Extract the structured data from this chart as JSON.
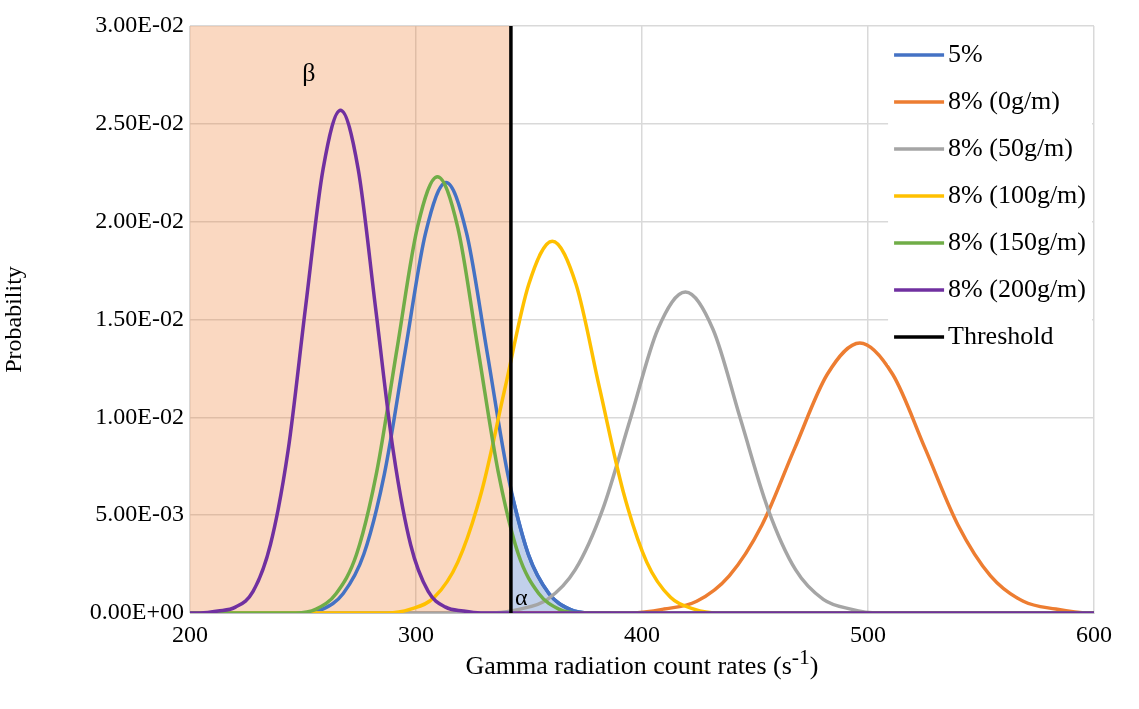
{
  "chart_data": {
    "type": "line",
    "xlabel": "Gamma radiation count rates (s$^{-1}$)",
    "ylabel": "Probability",
    "xlim": [
      200,
      600
    ],
    "xticks": [
      200,
      300,
      400,
      500,
      600
    ],
    "ylim": [
      0,
      0.03
    ],
    "yticks": [
      {
        "value": 0,
        "label": "0.00E+00"
      },
      {
        "value": 0.005,
        "label": "5.00E-03"
      },
      {
        "value": 0.01,
        "label": "1.00E-02"
      },
      {
        "value": 0.015,
        "label": "1.50E-02"
      },
      {
        "value": 0.02,
        "label": "2.00E-02"
      },
      {
        "value": 0.025,
        "label": "2.50E-02"
      },
      {
        "value": 0.03,
        "label": "3.00E-02"
      }
    ],
    "grid": true,
    "legend": "top right",
    "marker": "none",
    "line_style": "solid",
    "series": [
      {
        "type": "area",
        "name": "α",
        "color": "#4472c4",
        "x": [
          342,
          349.7,
          358.8,
          367.9,
          377.0,
          386.1
        ],
        "values": [
          0.0062,
          0.003,
          0.001,
          0.0002,
          0,
          0
        ]
      },
      {
        "name": "5%",
        "color": "#4472c4",
        "x": [
          240.5,
          249.6,
          258.7,
          267.8,
          276.9,
          286.0,
          295.1,
          304.2,
          313.3,
          322.4,
          331.5,
          340.6,
          349.7,
          358.8,
          367.9,
          377.0,
          386.1
        ],
        "values": [
          0,
          0,
          0.0002,
          0.001,
          0.003,
          0.0071,
          0.0133,
          0.0194,
          0.022,
          0.0194,
          0.0133,
          0.0071,
          0.003,
          0.001,
          0.0002,
          0,
          0
        ]
      },
      {
        "name": "8% (0g/m)",
        "color": "#ed7d31",
        "x": [
          200,
          380.8,
          395.3,
          409.7,
          424.2,
          438.6,
          453.1,
          467.5,
          482.0,
          496.4,
          510.9,
          525.3,
          539.8,
          554.2,
          568.7,
          583.1,
          597.6,
          600
        ],
        "values": [
          0,
          0,
          0,
          0.0002,
          0.0006,
          0.0019,
          0.0045,
          0.0084,
          0.0122,
          0.0138,
          0.0122,
          0.0084,
          0.0045,
          0.0019,
          0.0006,
          0.0002,
          0,
          0
        ]
      },
      {
        "name": "8% (50g/m)",
        "color": "#a5a5a5",
        "x": [
          200,
          321.6,
          333.8,
          346.0,
          358.2,
          370.4,
          382.6,
          394.8,
          407.0,
          419.2,
          431.4,
          443.6,
          455.8,
          468.0,
          480.2,
          492.4,
          504.6,
          516.8,
          600
        ],
        "values": [
          0,
          0,
          0,
          0.0002,
          0.0007,
          0.0022,
          0.0053,
          0.0099,
          0.0145,
          0.0164,
          0.0145,
          0.0099,
          0.0053,
          0.0022,
          0.0007,
          0.0002,
          0,
          0,
          0
        ]
      },
      {
        "name": "8% (100g/m)",
        "color": "#ffc000",
        "x": [
          200,
          276.7,
          287.2,
          297.6,
          308.1,
          318.5,
          329.0,
          339.4,
          349.9,
          360.3,
          370.8,
          381.2,
          391.7,
          402.1,
          412.6,
          423.0,
          433.5,
          443.9,
          600
        ],
        "values": [
          0,
          0,
          0,
          0.0002,
          0.0008,
          0.0026,
          0.0062,
          0.0115,
          0.0168,
          0.019,
          0.0168,
          0.0115,
          0.0062,
          0.0026,
          0.0008,
          0.0002,
          0,
          0,
          0
        ]
      },
      {
        "name": "8% (150g/m)",
        "color": "#70ad47",
        "x": [
          200,
          237.9,
          246.8,
          255.8,
          264.7,
          273.7,
          282.6,
          291.6,
          300.6,
          309.5,
          318.5,
          327.4,
          336.4,
          345.3,
          354.3,
          363.2,
          372.2,
          381.1,
          600
        ],
        "values": [
          0,
          0,
          0,
          0.0002,
          0.001,
          0.003,
          0.0072,
          0.0135,
          0.0197,
          0.0223,
          0.0197,
          0.0135,
          0.0072,
          0.003,
          0.001,
          0.0002,
          0,
          0,
          0
        ]
      },
      {
        "name": "8% (200g/m)",
        "color": "#7030a0",
        "x": [
          200,
          204.6,
          212.4,
          220.1,
          227.9,
          235.6,
          243.4,
          251.1,
          258.9,
          266.6,
          274.4,
          282.1,
          289.9,
          297.6,
          305.4,
          313.1,
          320.9,
          328.6,
          342,
          400,
          500,
          600
        ],
        "values": [
          0,
          0,
          0.0001,
          0.0003,
          0.0011,
          0.0035,
          0.0083,
          0.0156,
          0.0227,
          0.0257,
          0.0227,
          0.0156,
          0.0083,
          0.0035,
          0.0011,
          0.0003,
          0.0001,
          0,
          0,
          0,
          0,
          0
        ]
      },
      {
        "name": "Threshold",
        "color": "#000000",
        "x": [
          342,
          342
        ],
        "values": [
          0,
          0.03
        ]
      }
    ],
    "bands": [
      {
        "axis": "x",
        "from": 200,
        "to": 342,
        "label": "β",
        "color": "#ed7d31"
      }
    ]
  }
}
